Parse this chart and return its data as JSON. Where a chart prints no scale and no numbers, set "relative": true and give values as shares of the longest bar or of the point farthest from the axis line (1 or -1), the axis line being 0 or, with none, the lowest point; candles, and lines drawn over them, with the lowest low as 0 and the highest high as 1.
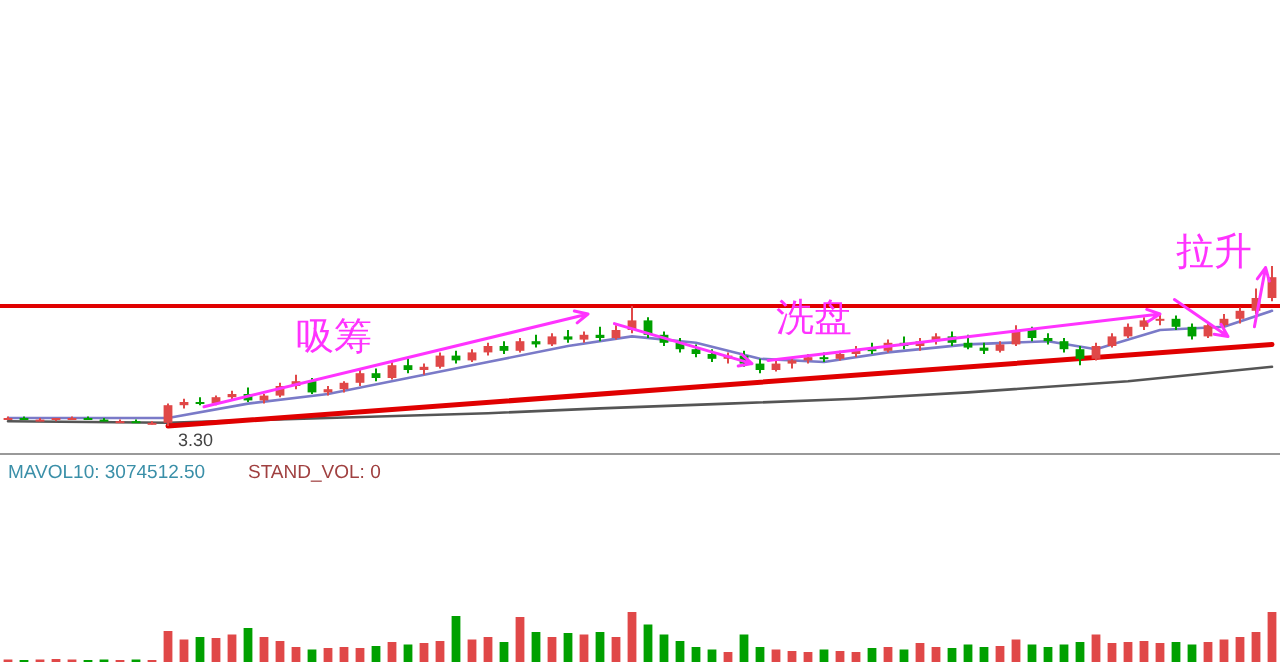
{
  "chart_data": [
    {
      "type": "candlestick",
      "relative": true,
      "categories": [
        null,
        null,
        null,
        null,
        null,
        null,
        null,
        null,
        null,
        null,
        null,
        null,
        null,
        null,
        null,
        null,
        null,
        null,
        null,
        null,
        null,
        null,
        null,
        null,
        null,
        null,
        null,
        null,
        null,
        null,
        null,
        null,
        null,
        null,
        null,
        null,
        null,
        null,
        null,
        null,
        null,
        null,
        null,
        null,
        null,
        null,
        null,
        null,
        null,
        null,
        null,
        null,
        null,
        null,
        null,
        null,
        null,
        null,
        null,
        null,
        null,
        null,
        null,
        null,
        null,
        null,
        null,
        null,
        null,
        null,
        null,
        null,
        null,
        null,
        null,
        null,
        null,
        null,
        null,
        null
      ],
      "ohlc": [
        [
          0.05,
          0.06,
          0.04,
          0.05
        ],
        [
          0.05,
          0.06,
          0.04,
          0.04
        ],
        [
          0.04,
          0.05,
          0.03,
          0.04
        ],
        [
          0.04,
          0.05,
          0.03,
          0.05
        ],
        [
          0.05,
          0.06,
          0.04,
          0.05
        ],
        [
          0.05,
          0.06,
          0.04,
          0.04
        ],
        [
          0.04,
          0.05,
          0.03,
          0.03
        ],
        [
          0.03,
          0.04,
          0.02,
          0.03
        ],
        [
          0.03,
          0.04,
          0.02,
          0.02
        ],
        [
          0.02,
          0.03,
          0.01,
          0.02
        ],
        [
          0.02,
          0.14,
          0.0,
          0.13
        ],
        [
          0.13,
          0.17,
          0.11,
          0.15
        ],
        [
          0.15,
          0.18,
          0.13,
          0.14
        ],
        [
          0.14,
          0.19,
          0.13,
          0.18
        ],
        [
          0.18,
          0.22,
          0.16,
          0.2
        ],
        [
          0.2,
          0.24,
          0.15,
          0.16
        ],
        [
          0.16,
          0.2,
          0.14,
          0.19
        ],
        [
          0.19,
          0.27,
          0.18,
          0.25
        ],
        [
          0.25,
          0.32,
          0.23,
          0.28
        ],
        [
          0.28,
          0.3,
          0.2,
          0.21
        ],
        [
          0.21,
          0.25,
          0.19,
          0.23
        ],
        [
          0.23,
          0.28,
          0.21,
          0.27
        ],
        [
          0.27,
          0.35,
          0.25,
          0.33
        ],
        [
          0.33,
          0.36,
          0.28,
          0.3
        ],
        [
          0.3,
          0.4,
          0.29,
          0.38
        ],
        [
          0.38,
          0.42,
          0.33,
          0.35
        ],
        [
          0.35,
          0.39,
          0.32,
          0.37
        ],
        [
          0.37,
          0.46,
          0.36,
          0.44
        ],
        [
          0.44,
          0.47,
          0.39,
          0.41
        ],
        [
          0.41,
          0.48,
          0.4,
          0.46
        ],
        [
          0.46,
          0.52,
          0.44,
          0.5
        ],
        [
          0.5,
          0.53,
          0.45,
          0.47
        ],
        [
          0.47,
          0.55,
          0.46,
          0.53
        ],
        [
          0.53,
          0.57,
          0.49,
          0.51
        ],
        [
          0.51,
          0.58,
          0.5,
          0.56
        ],
        [
          0.56,
          0.6,
          0.52,
          0.54
        ],
        [
          0.54,
          0.59,
          0.52,
          0.57
        ],
        [
          0.57,
          0.62,
          0.53,
          0.55
        ],
        [
          0.55,
          0.63,
          0.54,
          0.6
        ],
        [
          0.6,
          0.75,
          0.58,
          0.66
        ],
        [
          0.66,
          0.68,
          0.55,
          0.57
        ],
        [
          0.57,
          0.59,
          0.5,
          0.52
        ],
        [
          0.52,
          0.55,
          0.46,
          0.48
        ],
        [
          0.48,
          0.51,
          0.43,
          0.45
        ],
        [
          0.45,
          0.48,
          0.4,
          0.42
        ],
        [
          0.42,
          0.46,
          0.39,
          0.44
        ],
        [
          0.44,
          0.47,
          0.37,
          0.39
        ],
        [
          0.39,
          0.42,
          0.33,
          0.35
        ],
        [
          0.35,
          0.41,
          0.34,
          0.39
        ],
        [
          0.39,
          0.42,
          0.36,
          0.41
        ],
        [
          0.41,
          0.45,
          0.39,
          0.43
        ],
        [
          0.43,
          0.46,
          0.4,
          0.42
        ],
        [
          0.42,
          0.47,
          0.41,
          0.45
        ],
        [
          0.45,
          0.5,
          0.43,
          0.48
        ],
        [
          0.48,
          0.52,
          0.45,
          0.47
        ],
        [
          0.47,
          0.54,
          0.46,
          0.52
        ],
        [
          0.52,
          0.56,
          0.48,
          0.5
        ],
        [
          0.5,
          0.55,
          0.47,
          0.53
        ],
        [
          0.53,
          0.58,
          0.51,
          0.56
        ],
        [
          0.56,
          0.59,
          0.5,
          0.52
        ],
        [
          0.52,
          0.57,
          0.48,
          0.49
        ],
        [
          0.49,
          0.52,
          0.45,
          0.47
        ],
        [
          0.47,
          0.53,
          0.46,
          0.51
        ],
        [
          0.51,
          0.63,
          0.5,
          0.6
        ],
        [
          0.6,
          0.62,
          0.53,
          0.55
        ],
        [
          0.55,
          0.58,
          0.51,
          0.53
        ],
        [
          0.53,
          0.55,
          0.46,
          0.48
        ],
        [
          0.48,
          0.5,
          0.38,
          0.42
        ],
        [
          0.42,
          0.52,
          0.41,
          0.5
        ],
        [
          0.5,
          0.58,
          0.49,
          0.56
        ],
        [
          0.56,
          0.64,
          0.55,
          0.62
        ],
        [
          0.62,
          0.68,
          0.6,
          0.66
        ],
        [
          0.66,
          0.7,
          0.63,
          0.67
        ],
        [
          0.67,
          0.69,
          0.6,
          0.62
        ],
        [
          0.62,
          0.64,
          0.54,
          0.56
        ],
        [
          0.56,
          0.65,
          0.55,
          0.63
        ],
        [
          0.63,
          0.7,
          0.61,
          0.67
        ],
        [
          0.67,
          0.74,
          0.64,
          0.72
        ],
        [
          0.72,
          0.86,
          0.7,
          0.8
        ],
        [
          0.8,
          1.0,
          0.78,
          0.93
        ]
      ],
      "colors": [
        "#e04848",
        "#00a000",
        "#e04848",
        "#e04848",
        "#e04848",
        "#00a000",
        "#00a000",
        "#e04848",
        "#00a000",
        "#e04848",
        "#e04848",
        "#e04848",
        "#00a000",
        "#e04848",
        "#e04848",
        "#00a000",
        "#e04848",
        "#e04848",
        "#e04848",
        "#00a000",
        "#e04848",
        "#e04848",
        "#e04848",
        "#00a000",
        "#e04848",
        "#00a000",
        "#e04848",
        "#e04848",
        "#00a000",
        "#e04848",
        "#e04848",
        "#00a000",
        "#e04848",
        "#00a000",
        "#e04848",
        "#00a000",
        "#e04848",
        "#00a000",
        "#e04848",
        "#e04848",
        "#00a000",
        "#00a000",
        "#00a000",
        "#00a000",
        "#00a000",
        "#e04848",
        "#00a000",
        "#00a000",
        "#e04848",
        "#e04848",
        "#e04848",
        "#00a000",
        "#e04848",
        "#e04848",
        "#00a000",
        "#e04848",
        "#00a000",
        "#e04848",
        "#e04848",
        "#00a000",
        "#00a000",
        "#00a000",
        "#e04848",
        "#e04848",
        "#00a000",
        "#00a000",
        "#00a000",
        "#00a000",
        "#e04848",
        "#e04848",
        "#e04848",
        "#e04848",
        "#e04848",
        "#00a000",
        "#00a000",
        "#e04848",
        "#e04848",
        "#e04848",
        "#e04848",
        "#e04848"
      ],
      "series": [
        {
          "type": "line",
          "color": "#555555",
          "values": [
            0.03,
            null,
            null,
            null,
            null,
            null,
            null,
            null,
            null,
            null,
            0.02,
            null,
            null,
            null,
            null,
            null,
            null,
            null,
            null,
            null,
            0.05,
            null,
            null,
            null,
            null,
            null,
            null,
            null,
            null,
            null,
            0.08,
            null,
            null,
            null,
            null,
            null,
            null,
            0.11,
            null,
            null,
            null,
            null,
            null,
            null,
            null,
            0.14,
            null,
            null,
            null,
            null,
            null,
            null,
            null,
            0.17,
            null,
            null,
            null,
            null,
            null,
            null,
            0.21,
            null,
            null,
            null,
            null,
            null,
            null,
            null,
            null,
            null,
            0.28,
            null,
            null,
            null,
            null,
            null,
            null,
            null,
            null,
            0.37
          ]
        },
        {
          "type": "line",
          "color": "#7a7ac8",
          "values": [
            0.05,
            null,
            null,
            null,
            null,
            null,
            null,
            null,
            null,
            null,
            0.05,
            null,
            null,
            null,
            null,
            0.14,
            null,
            null,
            null,
            null,
            0.2,
            null,
            null,
            null,
            null,
            0.3,
            null,
            null,
            null,
            null,
            0.4,
            null,
            null,
            null,
            null,
            0.5,
            null,
            null,
            null,
            0.56,
            null,
            null,
            null,
            0.52,
            null,
            null,
            null,
            0.42,
            null,
            null,
            null,
            0.4,
            null,
            null,
            null,
            0.46,
            null,
            null,
            null,
            null,
            0.51,
            null,
            null,
            null,
            null,
            0.53,
            null,
            null,
            0.48,
            null,
            null,
            null,
            0.6,
            null,
            null,
            null,
            0.62,
            null,
            null,
            0.72
          ]
        },
        {
          "type": "line",
          "color": "#e00000",
          "values": [
            null,
            null,
            null,
            null,
            null,
            null,
            null,
            null,
            null,
            null,
            0,
            null,
            null,
            null,
            null,
            null,
            null,
            null,
            null,
            null,
            null,
            null,
            null,
            null,
            null,
            null,
            null,
            null,
            null,
            null,
            null,
            null,
            null,
            null,
            null,
            null,
            null,
            null,
            null,
            null,
            null,
            null,
            null,
            null,
            null,
            null,
            null,
            null,
            null,
            null,
            null,
            null,
            null,
            null,
            null,
            null,
            null,
            null,
            null,
            null,
            null,
            null,
            null,
            null,
            null,
            null,
            null,
            null,
            null,
            null,
            null,
            null,
            null,
            null,
            null,
            null,
            null,
            null,
            null,
            0.51
          ]
        }
      ],
      "ref_lines": [
        {
          "axis": "y",
          "value": 0.75,
          "color": "#e00000"
        }
      ],
      "annotations": [
        "吸筹",
        "洗盘",
        "拉升",
        "3.30"
      ]
    },
    {
      "type": "bar",
      "relative": true,
      "categories": [
        null,
        null,
        null,
        null,
        null,
        null,
        null,
        null,
        null,
        null,
        null,
        null,
        null,
        null,
        null,
        null,
        null,
        null,
        null,
        null,
        null,
        null,
        null,
        null,
        null,
        null,
        null,
        null,
        null,
        null,
        null,
        null,
        null,
        null,
        null,
        null,
        null,
        null,
        null,
        null,
        null,
        null,
        null,
        null,
        null,
        null,
        null,
        null,
        null,
        null,
        null,
        null,
        null,
        null,
        null,
        null,
        null,
        null,
        null,
        null,
        null,
        null,
        null,
        null,
        null,
        null,
        null,
        null,
        null,
        null,
        null,
        null,
        null,
        null,
        null,
        null,
        null,
        null,
        null,
        null
      ],
      "values": [
        0.05,
        0.04,
        0.05,
        0.06,
        0.05,
        0.04,
        0.05,
        0.04,
        0.05,
        0.04,
        0.62,
        0.45,
        0.5,
        0.48,
        0.55,
        0.68,
        0.5,
        0.42,
        0.3,
        0.25,
        0.28,
        0.3,
        0.28,
        0.32,
        0.4,
        0.35,
        0.38,
        0.42,
        0.92,
        0.45,
        0.5,
        0.4,
        0.9,
        0.6,
        0.5,
        0.58,
        0.55,
        0.6,
        0.5,
        1.0,
        0.75,
        0.55,
        0.42,
        0.3,
        0.25,
        0.2,
        0.55,
        0.3,
        0.25,
        0.22,
        0.2,
        0.25,
        0.22,
        0.2,
        0.28,
        0.3,
        0.25,
        0.38,
        0.3,
        0.28,
        0.35,
        0.3,
        0.32,
        0.45,
        0.35,
        0.3,
        0.35,
        0.4,
        0.55,
        0.38,
        0.4,
        0.42,
        0.38,
        0.4,
        0.35,
        0.4,
        0.45,
        0.5,
        0.6,
        1.0
      ],
      "colors": [
        "#e04848",
        "#00a000",
        "#e04848",
        "#e04848",
        "#e04848",
        "#00a000",
        "#00a000",
        "#e04848",
        "#00a000",
        "#e04848",
        "#e04848",
        "#e04848",
        "#00a000",
        "#e04848",
        "#e04848",
        "#00a000",
        "#e04848",
        "#e04848",
        "#e04848",
        "#00a000",
        "#e04848",
        "#e04848",
        "#e04848",
        "#00a000",
        "#e04848",
        "#00a000",
        "#e04848",
        "#e04848",
        "#00a000",
        "#e04848",
        "#e04848",
        "#00a000",
        "#e04848",
        "#00a000",
        "#e04848",
        "#00a000",
        "#e04848",
        "#00a000",
        "#e04848",
        "#e04848",
        "#00a000",
        "#00a000",
        "#00a000",
        "#00a000",
        "#00a000",
        "#e04848",
        "#00a000",
        "#00a000",
        "#e04848",
        "#e04848",
        "#e04848",
        "#00a000",
        "#e04848",
        "#e04848",
        "#00a000",
        "#e04848",
        "#00a000",
        "#e04848",
        "#e04848",
        "#00a000",
        "#00a000",
        "#00a000",
        "#e04848",
        "#e04848",
        "#00a000",
        "#00a000",
        "#00a000",
        "#00a000",
        "#e04848",
        "#e04848",
        "#e04848",
        "#e04848",
        "#e04848",
        "#00a000",
        "#00a000",
        "#e04848",
        "#e04848",
        "#e04848",
        "#e04848",
        "#e04848"
      ],
      "annotations": [
        "MAVOL10: 3074512.50",
        "STAND_VOL: 0"
      ]
    }
  ]
}
